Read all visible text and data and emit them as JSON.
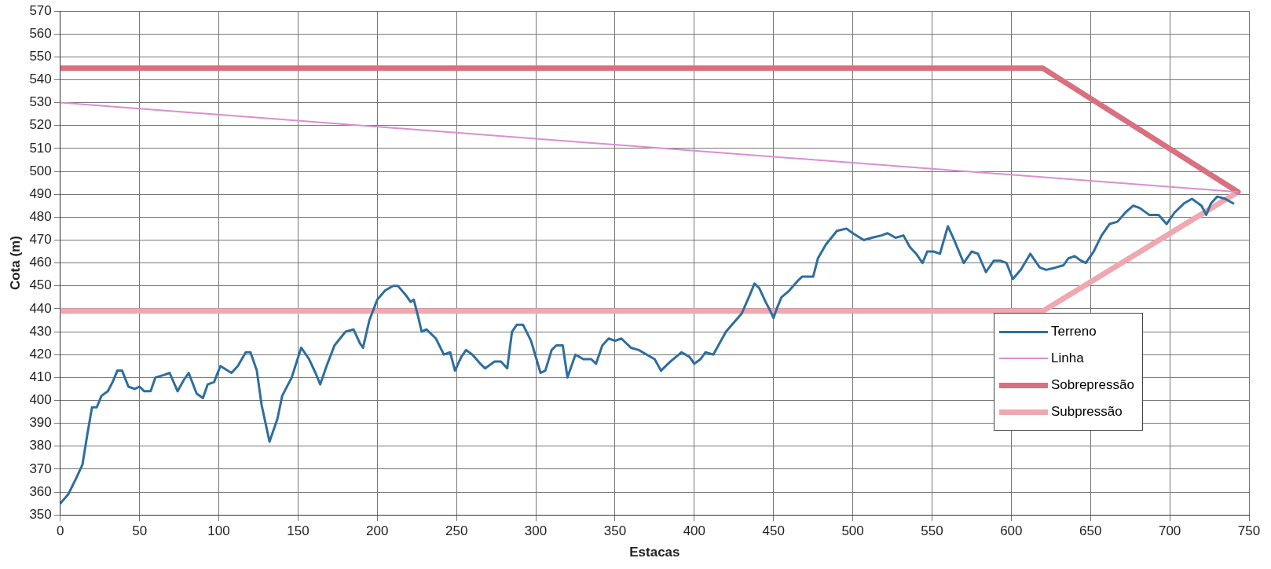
{
  "chart_data": {
    "type": "line",
    "xlabel": "Estacas",
    "ylabel": "Cota (m)",
    "xlim": [
      0,
      750
    ],
    "xticks": [
      0,
      50,
      100,
      150,
      200,
      250,
      300,
      350,
      400,
      450,
      500,
      550,
      600,
      650,
      700,
      750
    ],
    "ylim": [
      350,
      570
    ],
    "yticks": [
      350,
      360,
      370,
      380,
      390,
      400,
      410,
      420,
      430,
      440,
      450,
      460,
      470,
      480,
      490,
      500,
      510,
      520,
      530,
      540,
      550,
      560,
      570
    ],
    "grid": true,
    "legend": "bottom right",
    "marker": "none",
    "series": [
      {
        "name": "Terreno",
        "color": "#2e6e9e",
        "x": [
          0,
          5,
          10,
          14,
          17,
          20,
          23,
          26,
          30,
          33,
          36,
          39,
          43,
          47,
          50,
          53,
          57,
          60,
          65,
          69,
          74,
          78,
          81,
          86,
          90,
          93,
          97,
          101,
          108,
          112,
          117,
          120,
          124,
          127,
          132,
          137,
          140,
          146,
          152,
          157,
          161,
          164,
          168,
          173,
          180,
          185,
          189,
          191,
          195,
          200,
          205,
          210,
          213,
          218,
          221,
          223,
          226,
          228,
          231,
          237,
          242,
          246,
          249,
          253,
          256,
          260,
          265,
          268,
          274,
          278,
          282,
          285,
          288,
          292,
          297,
          303,
          306,
          310,
          313,
          317,
          320,
          325,
          330,
          335,
          338,
          342,
          346,
          350,
          354,
          360,
          365,
          370,
          375,
          379,
          385,
          392,
          397,
          400,
          404,
          407,
          412,
          420,
          430,
          435,
          438,
          441,
          445,
          448,
          450,
          452,
          455,
          460,
          465,
          468,
          475,
          478,
          483,
          490,
          496,
          500,
          507,
          512,
          518,
          522,
          527,
          532,
          536,
          540,
          544,
          547,
          551,
          555,
          560,
          564,
          570,
          575,
          579,
          584,
          589,
          593,
          597,
          601,
          606,
          612,
          618,
          622,
          628,
          633,
          636,
          640,
          644,
          647,
          652,
          657,
          662,
          667,
          672,
          677,
          681,
          687,
          693,
          698,
          703,
          709,
          714,
          720,
          723,
          726,
          730,
          735,
          740
        ],
        "values": [
          355,
          359,
          366,
          372,
          385,
          397,
          397,
          402,
          404,
          408,
          413,
          413,
          406,
          405,
          406,
          404,
          404,
          410,
          411,
          412,
          404,
          409,
          412,
          403,
          401,
          407,
          408,
          415,
          412,
          415,
          421,
          421,
          413,
          398,
          382,
          392,
          402,
          410,
          423,
          418,
          412,
          407,
          415,
          424,
          430,
          431,
          425,
          423,
          435,
          444,
          448,
          450,
          450,
          446,
          443,
          444,
          436,
          430,
          431,
          427,
          420,
          421,
          413,
          419,
          422,
          420,
          416,
          414,
          417,
          417,
          414,
          430,
          433,
          433,
          426,
          412,
          413,
          422,
          424,
          424,
          410,
          420,
          418,
          418,
          416,
          424,
          427,
          426,
          427,
          423,
          422,
          420,
          418,
          413,
          417,
          421,
          419,
          416,
          418,
          421,
          420,
          430,
          438,
          446,
          451,
          449,
          443,
          439,
          436,
          440,
          445,
          448,
          452,
          454,
          454,
          462,
          468,
          474,
          475,
          473,
          470,
          471,
          472,
          473,
          471,
          472,
          467,
          464,
          460,
          465,
          465,
          464,
          476,
          470,
          460,
          465,
          464,
          456,
          461,
          461,
          460,
          453,
          457,
          464,
          458,
          457,
          458,
          459,
          462,
          463,
          461,
          460,
          465,
          472,
          477,
          478,
          482,
          485,
          484,
          481,
          481,
          477,
          482,
          486,
          488,
          485,
          481,
          486,
          489,
          488,
          486
        ]
      },
      {
        "name": "Linha",
        "color": "#d98fd0",
        "x": [
          0,
          743
        ],
        "values": [
          530,
          491
        ]
      },
      {
        "name": "Sobrepressão",
        "color": "#d9707f",
        "x": [
          0,
          620,
          743
        ],
        "values": [
          545,
          545,
          491
        ]
      },
      {
        "name": "Subpressão",
        "color": "#f0a8b0",
        "x": [
          0,
          620,
          743
        ],
        "values": [
          439,
          439,
          491
        ]
      }
    ]
  }
}
